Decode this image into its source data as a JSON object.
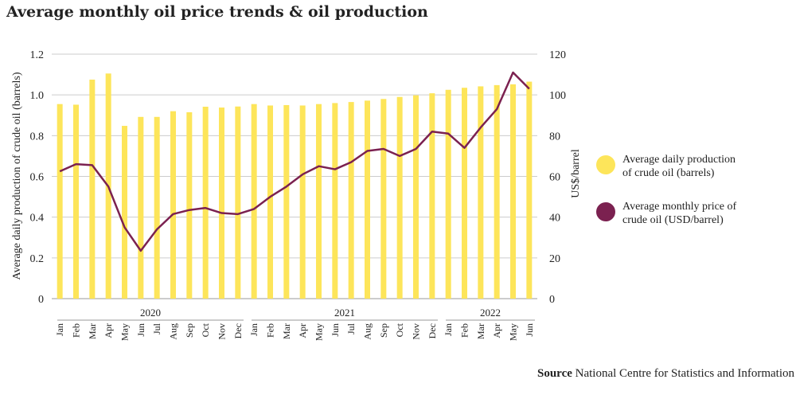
{
  "title": "Average monthly oil price trends & oil production",
  "source": {
    "label": "Source",
    "text": "National Centre for Statistics and Information"
  },
  "colors": {
    "production": "#fde55a",
    "price": "#7b2150",
    "grid": "#cccccc"
  },
  "chart_data": {
    "type": "bar+line",
    "title": "Average monthly oil price trends & oil production",
    "categories": [
      "Jan",
      "Feb",
      "Mar",
      "Apr",
      "May",
      "Jun",
      "Jul",
      "Aug",
      "Sep",
      "Oct",
      "Nov",
      "Dec",
      "Jan",
      "Feb",
      "Mar",
      "Apr",
      "May",
      "Jun",
      "Jul",
      "Aug",
      "Sep",
      "Oct",
      "Nov",
      "Dec",
      "Jan",
      "Feb",
      "Mar",
      "Apr",
      "May",
      "Jun"
    ],
    "years": [
      {
        "label": "2020",
        "months": 12
      },
      {
        "label": "2021",
        "months": 12
      },
      {
        "label": "2022",
        "months": 6
      }
    ],
    "ylabel_left": "Average daily production of crude oil (barrels)",
    "ylabel_right": "US$/barrel",
    "ylim_left": [
      0,
      1.2
    ],
    "ylim_right": [
      0,
      120
    ],
    "yticks_left": [
      "0",
      "0.2",
      "0.4",
      "0.6",
      "0.8",
      "1.0",
      "1.2"
    ],
    "yticks_right": [
      "0",
      "20",
      "40",
      "60",
      "80",
      "100",
      "120"
    ],
    "grid": true,
    "legend_placement": "right",
    "series": [
      {
        "name": "Average daily production of crude oil (barrels)",
        "type": "bar",
        "axis": "left",
        "values": [
          0.955,
          0.952,
          1.075,
          1.105,
          0.848,
          0.892,
          0.892,
          0.92,
          0.915,
          0.942,
          0.938,
          0.943,
          0.955,
          0.948,
          0.95,
          0.948,
          0.955,
          0.96,
          0.965,
          0.972,
          0.98,
          0.99,
          0.998,
          1.008,
          1.025,
          1.035,
          1.042,
          1.048,
          1.052,
          1.065
        ]
      },
      {
        "name": "Average monthly price of crude oil (USD/barrel)",
        "type": "line",
        "axis": "right",
        "values": [
          62.5,
          66,
          65.5,
          55,
          35,
          23.5,
          34,
          41.5,
          43.5,
          44.5,
          42,
          41.5,
          44,
          50,
          55,
          61,
          65,
          63.5,
          67,
          72.5,
          73.5,
          70,
          73.5,
          82,
          81,
          74,
          84,
          93,
          111,
          103
        ]
      }
    ],
    "legend": [
      {
        "line1": "Average daily production",
        "line2": "of crude oil (barrels)"
      },
      {
        "line1": "Average monthly price of",
        "line2": "crude oil (USD/barrel)"
      }
    ]
  }
}
